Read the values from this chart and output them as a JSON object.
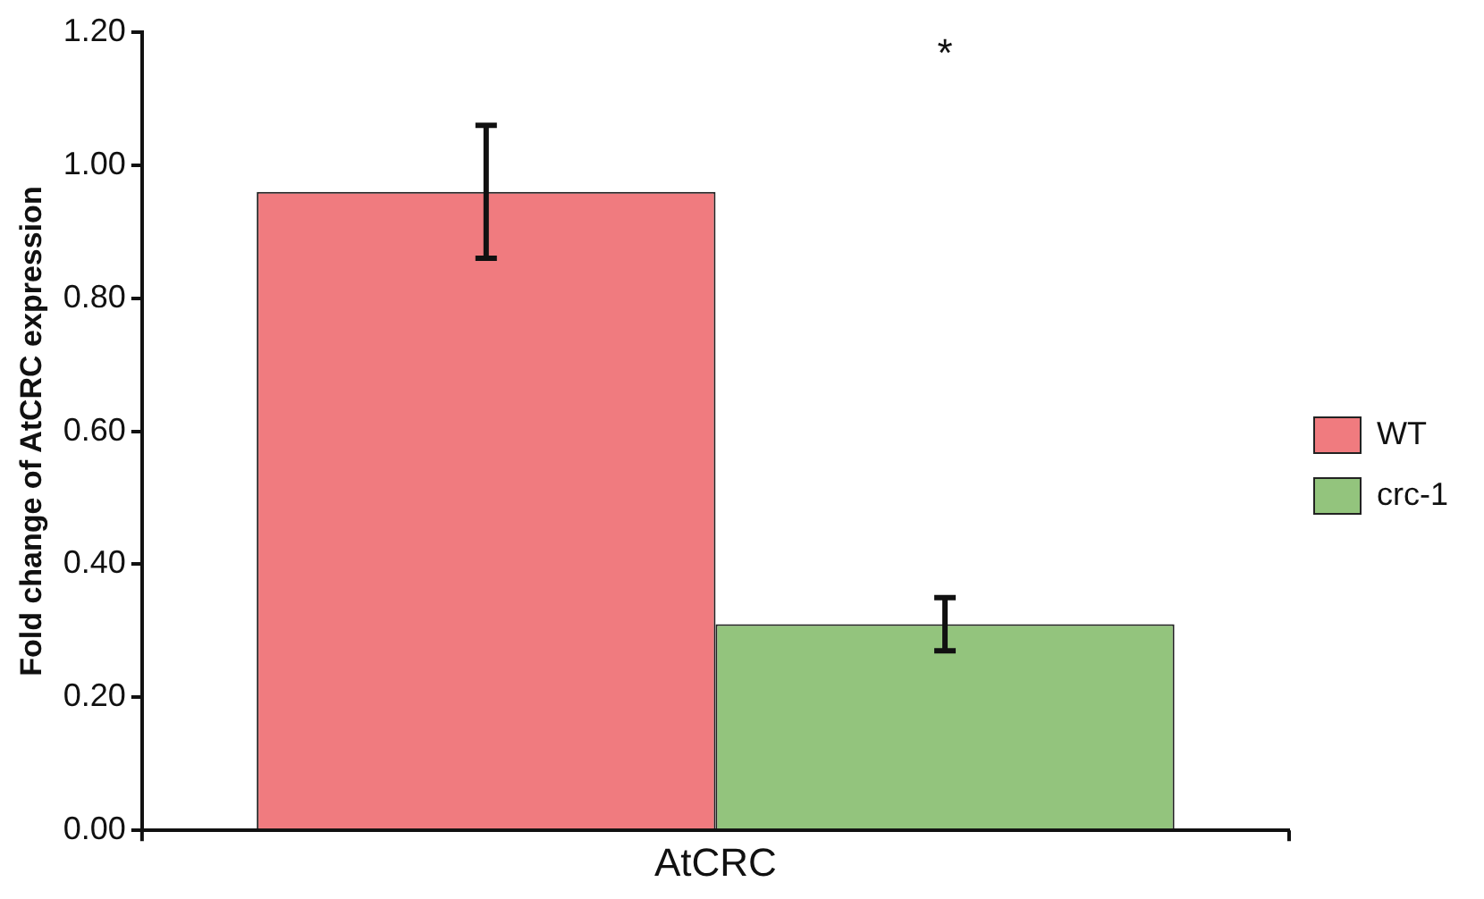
{
  "chart_data": {
    "type": "bar",
    "ylabel": "Fold change of AtCRC expression",
    "categories": [
      "AtCRC"
    ],
    "series": [
      {
        "name": "WT",
        "color": "#f07b7f",
        "values": [
          0.96
        ],
        "errors": [
          0.1
        ]
      },
      {
        "name": "crc-1",
        "color": "#93c47d",
        "values": [
          0.31
        ],
        "errors": [
          0.04
        ]
      }
    ],
    "ylim": [
      0,
      1.2
    ],
    "yticks": [
      {
        "value": 0,
        "label": "0.00"
      },
      {
        "value": 0.2,
        "label": "0.20"
      },
      {
        "value": 0.4,
        "label": "0.40"
      },
      {
        "value": 0.6,
        "label": "0.60"
      },
      {
        "value": 0.8,
        "label": "0.80"
      },
      {
        "value": 1,
        "label": "1.00"
      },
      {
        "value": 1.2,
        "label": "1.20"
      }
    ],
    "annotations": [
      "*"
    ],
    "grid": false,
    "legend": "right"
  }
}
